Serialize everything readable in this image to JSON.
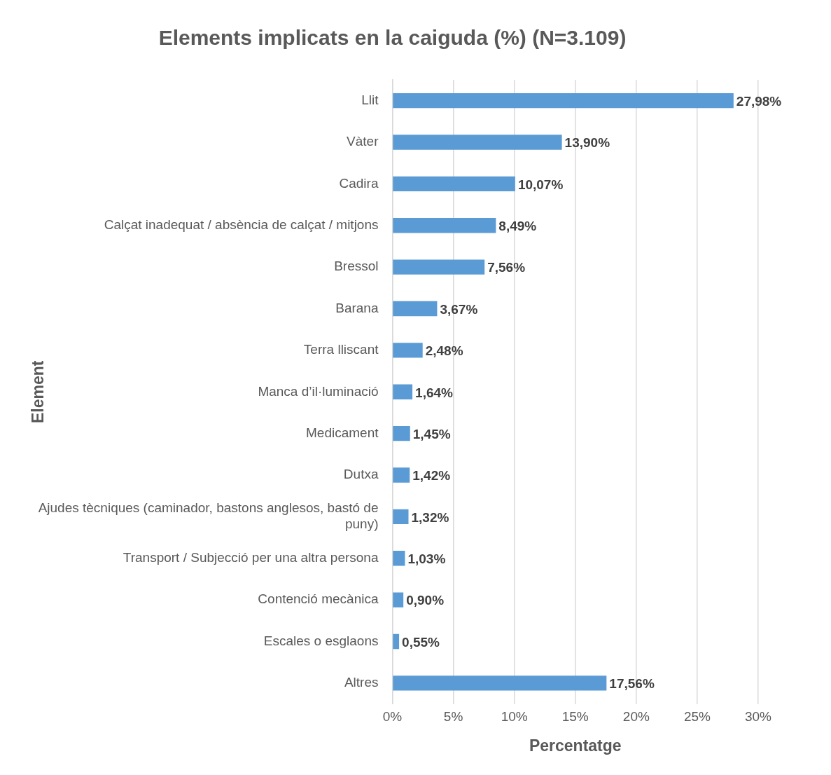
{
  "chart_data": {
    "type": "bar",
    "orientation": "horizontal",
    "title": "Elements implicats en la caiguda (%) (N=3.109)",
    "xlabel": "Percentatge",
    "ylabel": "Element",
    "categories": [
      "Llit",
      "Vàter",
      "Cadira",
      "Calçat inadequat / absència de calçat / mitjons",
      "Bressol",
      "Barana",
      "Terra lliscant",
      "Manca d’il·luminació",
      "Medicament",
      "Dutxa",
      "Ajudes tècniques (caminador, bastons anglesos, bastó de puny)",
      "Transport / Subjecció per una altra persona",
      "Contenció mecànica",
      "Escales o esglaons",
      "Altres"
    ],
    "values": [
      27.98,
      13.9,
      10.07,
      8.49,
      7.56,
      3.67,
      2.48,
      1.64,
      1.45,
      1.42,
      1.32,
      1.03,
      0.9,
      0.55,
      17.56
    ],
    "value_labels": [
      "27,98%",
      "13,90%",
      "10,07%",
      "8,49%",
      "7,56%",
      "3,67%",
      "2,48%",
      "1,64%",
      "1,45%",
      "1,42%",
      "1,32%",
      "1,03%",
      "0,90%",
      "0,55%",
      "17,56%"
    ],
    "color": "#5b9bd5",
    "xlim": [
      0,
      30
    ],
    "xticks": [
      {
        "value": 0,
        "label": "0%"
      },
      {
        "value": 5,
        "label": "5%"
      },
      {
        "value": 10,
        "label": "10%"
      },
      {
        "value": 15,
        "label": "15%"
      },
      {
        "value": 20,
        "label": "20%"
      },
      {
        "value": 25,
        "label": "25%"
      },
      {
        "value": 30,
        "label": "30%"
      }
    ],
    "grid": "x",
    "legend": false
  }
}
